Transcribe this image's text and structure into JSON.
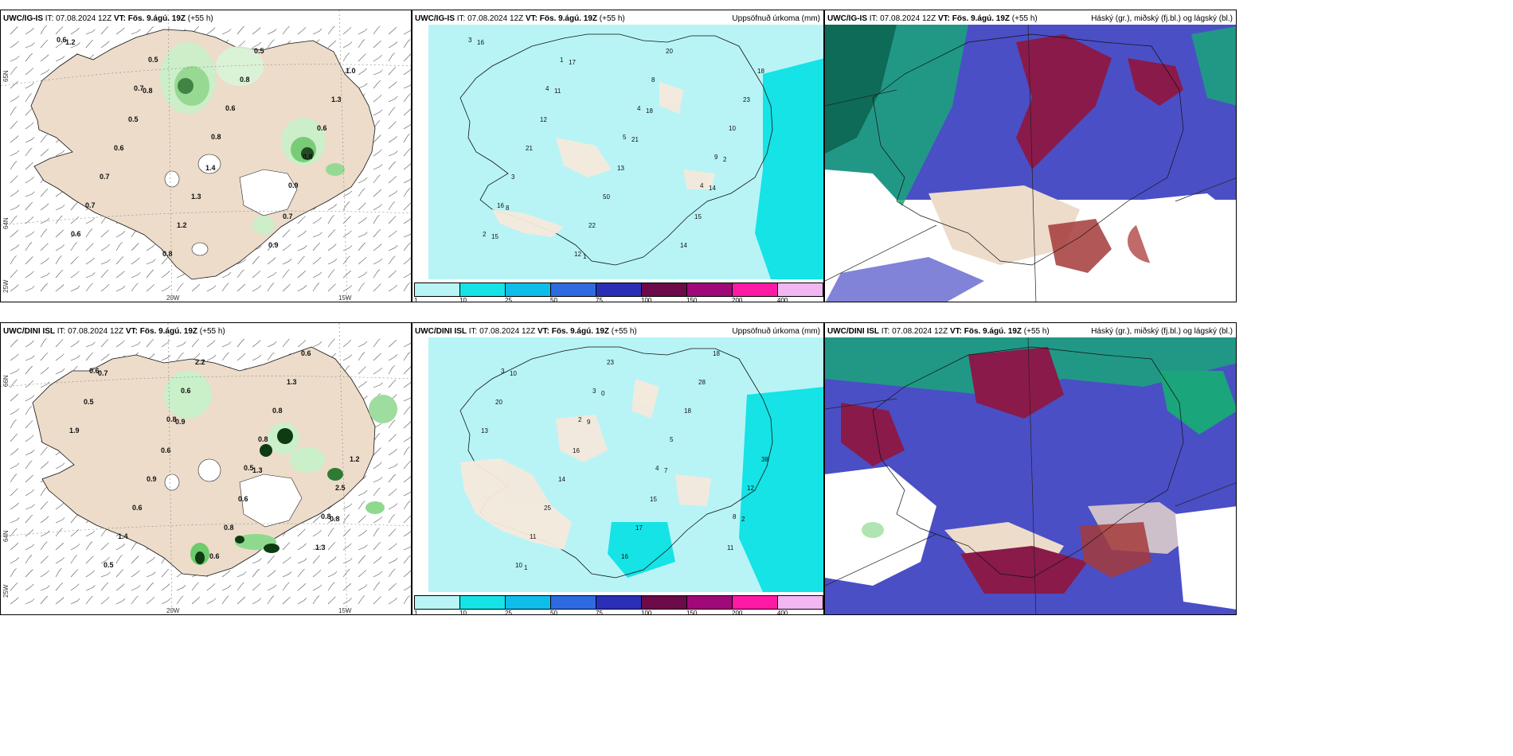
{
  "rows": [
    {
      "model": "UWC/IG-IS",
      "init_label": "IT:",
      "init_time": "07.08.2024 12Z",
      "valid_label": "VT:",
      "valid_time": "Fös. 9.ágú. 19Z",
      "lead": "(+55 h)",
      "precip_title": "Uppsöfnuð úrkoma (mm)",
      "cloud_title": "Háský (gr.), miðský (fj.bl.) og lágský (bl.)",
      "lon_labels": [
        "20W",
        "15W"
      ],
      "lat_labels": [
        "65N",
        "64N",
        "25W"
      ],
      "rain_labels": [
        "0.6",
        "0.7",
        "0.8",
        "0.9",
        "0.6",
        "0.5",
        "0.6",
        "0.8",
        "0.7",
        "0.8",
        "0.8",
        "0.6",
        "0.7",
        "1.2",
        "0.5",
        "1.3",
        "0.6",
        "1.3",
        "0.9",
        "1.0",
        "0.5",
        "1.4",
        "0.7",
        "1.2",
        "0.8"
      ],
      "precip_labels": [
        "3",
        "4",
        "5",
        "4",
        "2",
        "1",
        "4",
        "9",
        "16",
        "12",
        "8",
        "10",
        "3",
        "22",
        "20",
        "23",
        "21",
        "50",
        "14",
        "18",
        "12",
        "13",
        "15",
        "16",
        "11",
        "21",
        "14",
        "15",
        "17",
        "18",
        "2",
        "8",
        "1"
      ]
    },
    {
      "model": "UWC/DINI ISL",
      "init_label": "IT:",
      "init_time": "07.08.2024 12Z",
      "valid_label": "VT:",
      "valid_time": "Fös. 9.ágú. 19Z",
      "lead": "(+55 h)",
      "precip_title": "Uppsöfnuð úrkoma (mm)",
      "cloud_title": "Háský (gr.), miðský (fj.bl.) og lágský (bl.)",
      "lon_labels": [
        "20W",
        "15W"
      ],
      "lat_labels": [
        "66N",
        "64N",
        "25W"
      ],
      "rain_labels": [
        "0.6",
        "0.8",
        "0.5",
        "0.8",
        "0.5",
        "0.6",
        "0.8",
        "2.5",
        "1.4",
        "2.2",
        "0.8",
        "1.2",
        "0.6",
        "0.6",
        "1.3",
        "1.9",
        "0.9",
        "0.8",
        "0.6",
        "0.5",
        "0.6",
        "0.6",
        "1.3",
        "0.7",
        "0.9",
        "1.3",
        "0.8"
      ],
      "precip_labels": [
        "3",
        "2",
        "4",
        "8",
        "10",
        "3",
        "5",
        "12",
        "11",
        "23",
        "18",
        "38",
        "25",
        "16",
        "28",
        "13",
        "14",
        "17",
        "18",
        "20",
        "16",
        "15",
        "11",
        "10",
        "9",
        "7",
        "2",
        "1",
        "0"
      ]
    }
  ],
  "colorbar": {
    "labels": [
      "1",
      "10",
      "25",
      "50",
      "75",
      "100",
      "150",
      "200",
      "400"
    ],
    "colors": [
      "#b8f4f6",
      "#15e3e6",
      "#0fbdea",
      "#2e6be0",
      "#2b2fb5",
      "#6c0a4a",
      "#a00a78",
      "#ff1aa6",
      "#f2b6f2"
    ]
  },
  "colors": {
    "land": "#eddcca",
    "sea": "#ffffff",
    "precip_light": "#b8f4f6",
    "precip_mid": "#15e3e6",
    "rain_light": "#c9f0c9",
    "rain_mid": "#8ed98e",
    "rain_dark": "#0e3b12",
    "cloud_high": "#1aa57a",
    "cloud_mid": "#8a1a4a",
    "cloud_low": "#4248c2"
  }
}
